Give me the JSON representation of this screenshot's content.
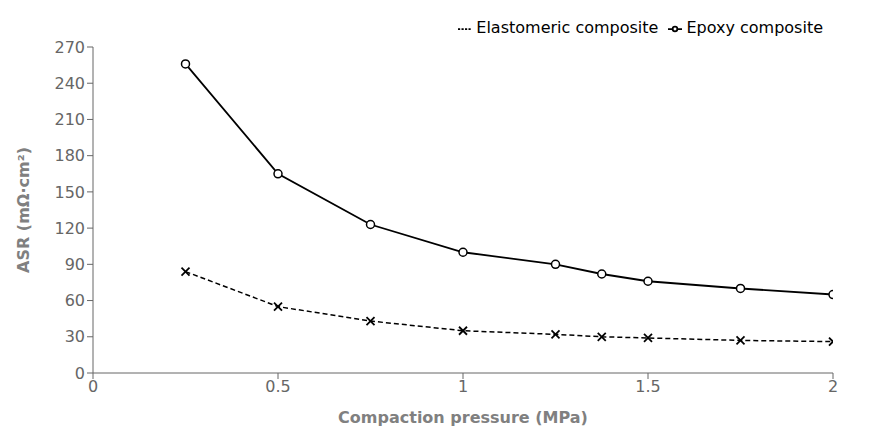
{
  "chart_data": {
    "type": "line",
    "xlabel": "Compaction pressure (MPa)",
    "ylabel": "ASR (mΩ·cm²)",
    "x": [
      0.25,
      0.5,
      0.75,
      1.0,
      1.25,
      1.375,
      1.5,
      1.75,
      2.0
    ],
    "series": [
      {
        "name": "Epoxy composite",
        "color": "#000000",
        "marker": "o",
        "line_style": "solid",
        "values": [
          256,
          165,
          123,
          100,
          90,
          82,
          76,
          70,
          65
        ]
      },
      {
        "name": "Elastomeric composite",
        "color": "#000000",
        "marker": "x",
        "line_style": "dashed",
        "values": [
          84,
          55,
          43,
          35,
          32,
          30,
          29,
          27,
          26
        ]
      }
    ],
    "xlim": [
      0,
      2.0
    ],
    "ylim": [
      0,
      270
    ],
    "xticks": [
      0,
      0.5,
      1,
      1.5,
      2
    ],
    "yticks": [
      0,
      30,
      60,
      90,
      120,
      150,
      180,
      210,
      240,
      270
    ],
    "grid": false,
    "legend": "upper right"
  }
}
